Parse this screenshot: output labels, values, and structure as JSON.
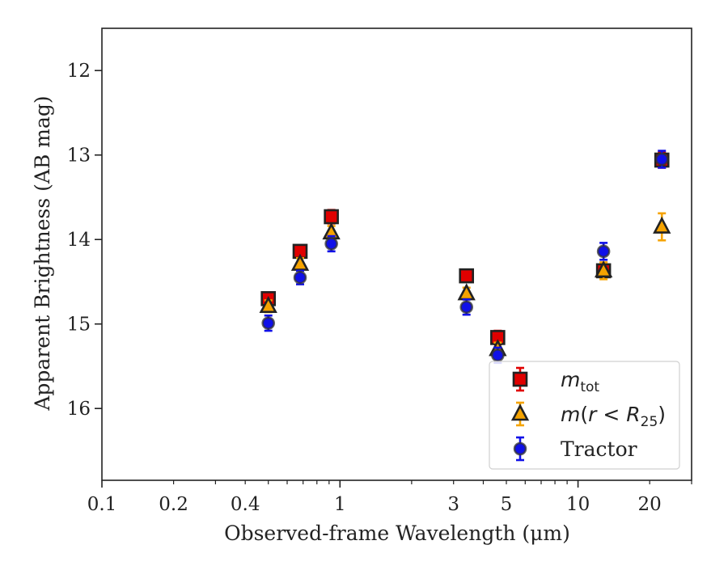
{
  "chart_data": {
    "type": "scatter",
    "title": "",
    "xlabel": "Observed-frame Wavelength (μm)",
    "ylabel": "Apparent Brightness (AB mag)",
    "x_scale": "log",
    "xlim": [
      0.1,
      30
    ],
    "ylim": [
      16.85,
      11.5
    ],
    "y_inverted": true,
    "grid": false,
    "legend_position": "bottom-right",
    "x_ticks": [
      {
        "value": 0.1,
        "label": "0.1"
      },
      {
        "value": 0.2,
        "label": "0.2"
      },
      {
        "value": 0.4,
        "label": "0.4"
      },
      {
        "value": 1,
        "label": "1"
      },
      {
        "value": 3,
        "label": "3"
      },
      {
        "value": 5,
        "label": "5"
      },
      {
        "value": 10,
        "label": "10"
      },
      {
        "value": 20,
        "label": "20"
      }
    ],
    "y_ticks": [
      {
        "value": 12,
        "label": "12"
      },
      {
        "value": 13,
        "label": "13"
      },
      {
        "value": 14,
        "label": "14"
      },
      {
        "value": 15,
        "label": "15"
      },
      {
        "value": 16,
        "label": "16"
      }
    ],
    "series": [
      {
        "name": "m_tot",
        "marker": "square",
        "color": "#e00000",
        "points": [
          {
            "x": 0.5,
            "y": 14.7,
            "err": 0.07
          },
          {
            "x": 0.68,
            "y": 14.14,
            "err": 0.07
          },
          {
            "x": 0.92,
            "y": 13.73,
            "err": 0.08
          },
          {
            "x": 3.4,
            "y": 14.43,
            "err": 0.07
          },
          {
            "x": 4.6,
            "y": 15.16,
            "err": 0.08
          },
          {
            "x": 12.8,
            "y": 14.37,
            "err": 0.08
          },
          {
            "x": 22.5,
            "y": 13.06,
            "err": 0.09
          }
        ]
      },
      {
        "name": "m(r<R25)",
        "marker": "triangle",
        "color": "#f5a300",
        "points": [
          {
            "x": 0.5,
            "y": 14.79,
            "err": 0.07
          },
          {
            "x": 0.68,
            "y": 14.29,
            "err": 0.07
          },
          {
            "x": 0.92,
            "y": 13.92,
            "err": 0.08
          },
          {
            "x": 3.4,
            "y": 14.64,
            "err": 0.07
          },
          {
            "x": 4.6,
            "y": 15.3,
            "err": 0.08
          },
          {
            "x": 12.8,
            "y": 14.37,
            "err": 0.1
          },
          {
            "x": 22.5,
            "y": 13.85,
            "err": 0.16
          }
        ]
      },
      {
        "name": "Tractor",
        "marker": "circle",
        "color": "#1010e8",
        "points": [
          {
            "x": 0.5,
            "y": 14.99,
            "err": 0.09
          },
          {
            "x": 0.68,
            "y": 14.45,
            "err": 0.08
          },
          {
            "x": 0.92,
            "y": 14.05,
            "err": 0.09
          },
          {
            "x": 3.4,
            "y": 14.8,
            "err": 0.09
          },
          {
            "x": 4.6,
            "y": 15.37,
            "err": 0.09
          },
          {
            "x": 12.8,
            "y": 14.14,
            "err": 0.1
          },
          {
            "x": 22.5,
            "y": 13.05,
            "err": 0.1
          }
        ]
      }
    ],
    "legend": {
      "entries": [
        {
          "series": 0,
          "label": "m",
          "sub": "tot"
        },
        {
          "series": 1,
          "label": "m(r < R",
          "sub": "25",
          "suffix": ")"
        },
        {
          "series": 2,
          "label": "Tractor"
        }
      ]
    }
  }
}
